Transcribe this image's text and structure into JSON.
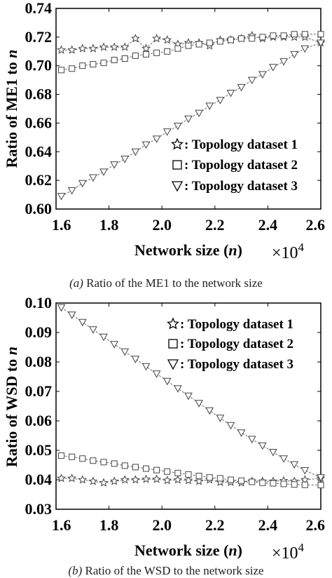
{
  "chart_data": [
    {
      "type": "line",
      "panel": "a",
      "caption_label": "(a)",
      "caption_text": "Ratio of the ME1 to the network size",
      "ylabel": "Ratio of ME1 to",
      "ylabel_var": "n",
      "xlabel": "Network size (",
      "xlabel_var": "n",
      "xlabel_close": ")",
      "x_multiplier_base": "×10",
      "x_multiplier_exp": "4",
      "xlim": [
        1.6,
        2.6
      ],
      "ylim": [
        0.6,
        0.74
      ],
      "xticks": [
        "1.6",
        "1.8",
        "2.0",
        "2.2",
        "2.4",
        "2.6"
      ],
      "yticks": [
        "0.60",
        "0.62",
        "0.64",
        "0.66",
        "0.68",
        "0.70",
        "0.72",
        "0.74"
      ],
      "legend_position": "bottom-right",
      "series": [
        {
          "name": "Topology dataset 1",
          "legend_label": ": Topology dataset 1",
          "marker": "star",
          "x": [
            1.62,
            1.66,
            1.7,
            1.74,
            1.78,
            1.82,
            1.86,
            1.9,
            1.94,
            1.98,
            2.02,
            2.06,
            2.1,
            2.14,
            2.18,
            2.22,
            2.26,
            2.3,
            2.34,
            2.38,
            2.42,
            2.46,
            2.5,
            2.54,
            2.6
          ],
          "y": [
            0.711,
            0.711,
            0.712,
            0.712,
            0.713,
            0.713,
            0.713,
            0.719,
            0.712,
            0.719,
            0.718,
            0.715,
            0.716,
            0.716,
            0.714,
            0.718,
            0.718,
            0.719,
            0.721,
            0.719,
            0.72,
            0.72,
            0.72,
            0.72,
            0.716
          ]
        },
        {
          "name": "Topology dataset 2",
          "legend_label": ": Topology dataset 2",
          "marker": "square",
          "x": [
            1.62,
            1.66,
            1.7,
            1.74,
            1.78,
            1.82,
            1.86,
            1.9,
            1.94,
            1.98,
            2.02,
            2.06,
            2.1,
            2.14,
            2.18,
            2.22,
            2.26,
            2.3,
            2.34,
            2.38,
            2.42,
            2.46,
            2.5,
            2.54,
            2.6
          ],
          "y": [
            0.697,
            0.698,
            0.7,
            0.701,
            0.702,
            0.704,
            0.705,
            0.707,
            0.708,
            0.709,
            0.71,
            0.712,
            0.714,
            0.715,
            0.716,
            0.717,
            0.718,
            0.719,
            0.719,
            0.72,
            0.721,
            0.721,
            0.722,
            0.722,
            0.722
          ]
        },
        {
          "name": "Topology dataset 3",
          "legend_label": ": Topology dataset 3",
          "marker": "triangle-down",
          "x": [
            1.62,
            1.66,
            1.7,
            1.74,
            1.78,
            1.82,
            1.86,
            1.9,
            1.94,
            1.98,
            2.02,
            2.06,
            2.1,
            2.14,
            2.18,
            2.22,
            2.26,
            2.3,
            2.34,
            2.38,
            2.42,
            2.46,
            2.5,
            2.54,
            2.6
          ],
          "y": [
            0.609,
            0.613,
            0.618,
            0.622,
            0.626,
            0.631,
            0.635,
            0.64,
            0.645,
            0.649,
            0.654,
            0.658,
            0.663,
            0.667,
            0.672,
            0.676,
            0.681,
            0.685,
            0.69,
            0.694,
            0.699,
            0.703,
            0.708,
            0.712,
            0.716
          ]
        }
      ]
    },
    {
      "type": "line",
      "panel": "b",
      "caption_label": "(b)",
      "caption_text": "Ratio of the WSD to the network size",
      "ylabel": "Ratio of WSD to",
      "ylabel_var": "n",
      "xlabel": "Network size (",
      "xlabel_var": "n",
      "xlabel_close": ")",
      "x_multiplier_base": "×10",
      "x_multiplier_exp": "4",
      "xlim": [
        1.6,
        2.6
      ],
      "ylim": [
        0.03,
        0.1
      ],
      "xticks": [
        "1.6",
        "1.8",
        "2.0",
        "2.2",
        "2.4",
        "2.6"
      ],
      "yticks": [
        "0.03",
        "0.04",
        "0.05",
        "0.06",
        "0.07",
        "0.08",
        "0.09",
        "0.10"
      ],
      "legend_position": "top-right",
      "series": [
        {
          "name": "Topology dataset 1",
          "legend_label": ": Topology dataset 1",
          "marker": "star",
          "x": [
            1.62,
            1.66,
            1.7,
            1.74,
            1.78,
            1.82,
            1.86,
            1.9,
            1.94,
            1.98,
            2.02,
            2.06,
            2.1,
            2.14,
            2.18,
            2.22,
            2.26,
            2.3,
            2.34,
            2.38,
            2.42,
            2.46,
            2.5,
            2.54,
            2.6
          ],
          "y": [
            0.0405,
            0.0405,
            0.04,
            0.0395,
            0.039,
            0.0395,
            0.04,
            0.04,
            0.0402,
            0.0402,
            0.0398,
            0.04,
            0.0398,
            0.0395,
            0.04,
            0.0392,
            0.0392,
            0.039,
            0.0395,
            0.0395,
            0.0395,
            0.0397,
            0.0395,
            0.04,
            0.0405
          ]
        },
        {
          "name": "Topology dataset 2",
          "legend_label": ": Topology dataset 2",
          "marker": "square",
          "x": [
            1.62,
            1.66,
            1.7,
            1.74,
            1.78,
            1.82,
            1.86,
            1.9,
            1.94,
            1.98,
            2.02,
            2.06,
            2.1,
            2.14,
            2.18,
            2.22,
            2.26,
            2.3,
            2.34,
            2.38,
            2.42,
            2.46,
            2.5,
            2.54,
            2.6
          ],
          "y": [
            0.0482,
            0.0478,
            0.0472,
            0.0465,
            0.046,
            0.0455,
            0.0448,
            0.0443,
            0.0438,
            0.0433,
            0.0428,
            0.0423,
            0.0418,
            0.0413,
            0.0408,
            0.0405,
            0.04,
            0.0397,
            0.0393,
            0.039,
            0.0388,
            0.0386,
            0.0384,
            0.0383,
            0.0382
          ]
        },
        {
          "name": "Topology dataset 3",
          "legend_label": ": Topology dataset 3",
          "marker": "triangle-down",
          "x": [
            1.62,
            1.66,
            1.7,
            1.74,
            1.78,
            1.82,
            1.86,
            1.9,
            1.94,
            1.98,
            2.02,
            2.06,
            2.1,
            2.14,
            2.18,
            2.22,
            2.26,
            2.3,
            2.34,
            2.38,
            2.42,
            2.46,
            2.5,
            2.54,
            2.6
          ],
          "y": [
            0.0985,
            0.096,
            0.0935,
            0.091,
            0.0885,
            0.086,
            0.0835,
            0.081,
            0.0785,
            0.076,
            0.0735,
            0.071,
            0.0685,
            0.066,
            0.0635,
            0.061,
            0.0585,
            0.056,
            0.0538,
            0.0516,
            0.0494,
            0.0472,
            0.0452,
            0.0432,
            0.0408
          ]
        }
      ]
    }
  ]
}
